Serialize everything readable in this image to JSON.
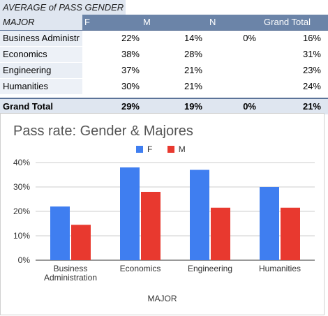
{
  "pivot": {
    "title": "AVERAGE of PASS GENDER",
    "headers": {
      "major": "MAJOR",
      "cols": [
        "F",
        "M",
        "N",
        "Grand Total"
      ]
    },
    "rows": [
      {
        "major": "Business Administr",
        "values": [
          "22%",
          "14%",
          "0%",
          "16%"
        ]
      },
      {
        "major": "Economics",
        "values": [
          "38%",
          "28%",
          "",
          "31%"
        ]
      },
      {
        "major": "Engineering",
        "values": [
          "37%",
          "21%",
          "",
          "23%"
        ]
      },
      {
        "major": "Humanities",
        "values": [
          "30%",
          "21%",
          "",
          "24%"
        ]
      }
    ],
    "grand_total": {
      "label": "Grand Total",
      "values": [
        "29%",
        "19%",
        "0%",
        "21%"
      ]
    }
  },
  "chart_data": {
    "type": "bar",
    "title": "Pass rate: Gender & Majores",
    "xlabel": "MAJOR",
    "ylabel": "",
    "categories": [
      "Business Administration",
      "Economics",
      "Engineering",
      "Humanities"
    ],
    "category_labels": [
      [
        "Business",
        "Administration"
      ],
      [
        "Economics"
      ],
      [
        "Engineering"
      ],
      [
        "Humanities"
      ]
    ],
    "series": [
      {
        "name": "F",
        "color": "#3f7ef0",
        "values": [
          0.22,
          0.38,
          0.37,
          0.3
        ]
      },
      {
        "name": "M",
        "color": "#e8392f",
        "values": [
          0.145,
          0.28,
          0.215,
          0.215
        ]
      }
    ],
    "ylim": [
      0,
      0.4
    ],
    "yticks": [
      "0%",
      "10%",
      "20%",
      "30%",
      "40%"
    ],
    "legend_position": "top-center",
    "grid": true
  }
}
